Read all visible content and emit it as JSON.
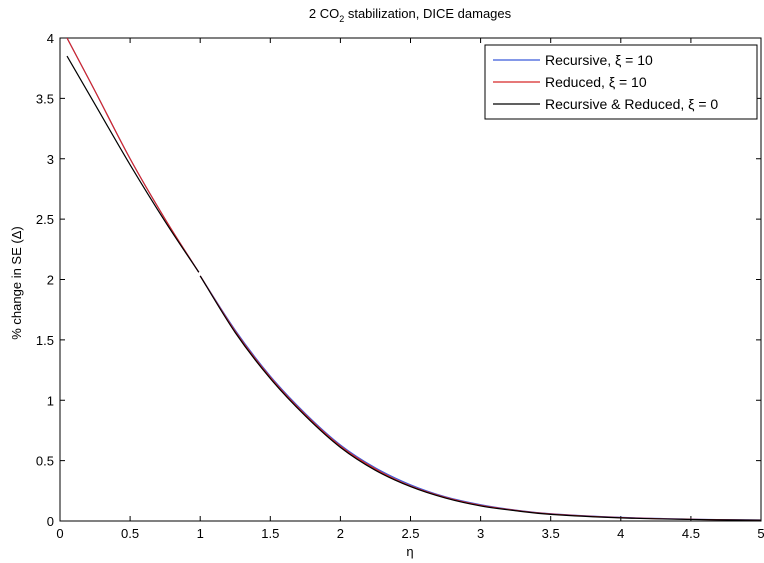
{
  "chart_data": {
    "type": "line",
    "title_main": "2 CO",
    "title_sub": "2",
    "title_rest": " stabilization, DICE damages",
    "xlabel": "η",
    "ylabel": "% change in SE (Δ)",
    "xlim": [
      0,
      5
    ],
    "ylim": [
      0,
      4
    ],
    "grid": false,
    "legend_position": "top-right",
    "x_ticks": [
      "0",
      "0.5",
      "1",
      "1.5",
      "2",
      "2.5",
      "3",
      "3.5",
      "4",
      "4.5",
      "5"
    ],
    "y_ticks": [
      "0",
      "0.5",
      "1",
      "1.5",
      "2",
      "2.5",
      "3",
      "3.5",
      "4"
    ],
    "series": [
      {
        "name": "Recursive, ξ = 10",
        "color": "#3b5bdb",
        "segments": [
          {
            "x": [
              0.05,
              0.25,
              0.5,
              0.75,
              0.99
            ],
            "y": [
              4.0,
              3.56,
              3.0,
              2.5,
              2.06
            ]
          },
          {
            "x": [
              1.0,
              1.25,
              1.5,
              1.75,
              2.0,
              2.25,
              2.5,
              2.75,
              3.0,
              3.25,
              3.5,
              4.0,
              4.5,
              5.0
            ],
            "y": [
              2.03,
              1.58,
              1.2,
              0.89,
              0.63,
              0.44,
              0.3,
              0.2,
              0.135,
              0.09,
              0.06,
              0.03,
              0.015,
              0.008
            ]
          }
        ]
      },
      {
        "name": "Reduced, ξ = 10",
        "color": "#d62728",
        "segments": [
          {
            "x": [
              0.05,
              0.25,
              0.5,
              0.75,
              0.99
            ],
            "y": [
              4.0,
              3.56,
              3.0,
              2.5,
              2.06
            ]
          },
          {
            "x": [
              1.0,
              1.25,
              1.5,
              1.75,
              2.0,
              2.25,
              2.5,
              2.75,
              3.0,
              3.25,
              3.5,
              4.0,
              4.5,
              5.0
            ],
            "y": [
              2.03,
              1.57,
              1.19,
              0.88,
              0.62,
              0.43,
              0.29,
              0.195,
              0.13,
              0.088,
              0.058,
              0.028,
              0.014,
              0.007
            ]
          }
        ]
      },
      {
        "name": "Recursive & Reduced, ξ = 0",
        "color": "#000000",
        "segments": [
          {
            "x": [
              0.05,
              0.25,
              0.5,
              0.75,
              0.99
            ],
            "y": [
              3.85,
              3.45,
              2.95,
              2.48,
              2.06
            ]
          },
          {
            "x": [
              1.0,
              1.25,
              1.5,
              1.75,
              2.0,
              2.25,
              2.5,
              2.75,
              3.0,
              3.25,
              3.5,
              4.0,
              4.5,
              5.0
            ],
            "y": [
              2.03,
              1.56,
              1.18,
              0.87,
              0.61,
              0.42,
              0.285,
              0.19,
              0.125,
              0.085,
              0.055,
              0.026,
              0.013,
              0.006
            ]
          }
        ]
      }
    ]
  }
}
